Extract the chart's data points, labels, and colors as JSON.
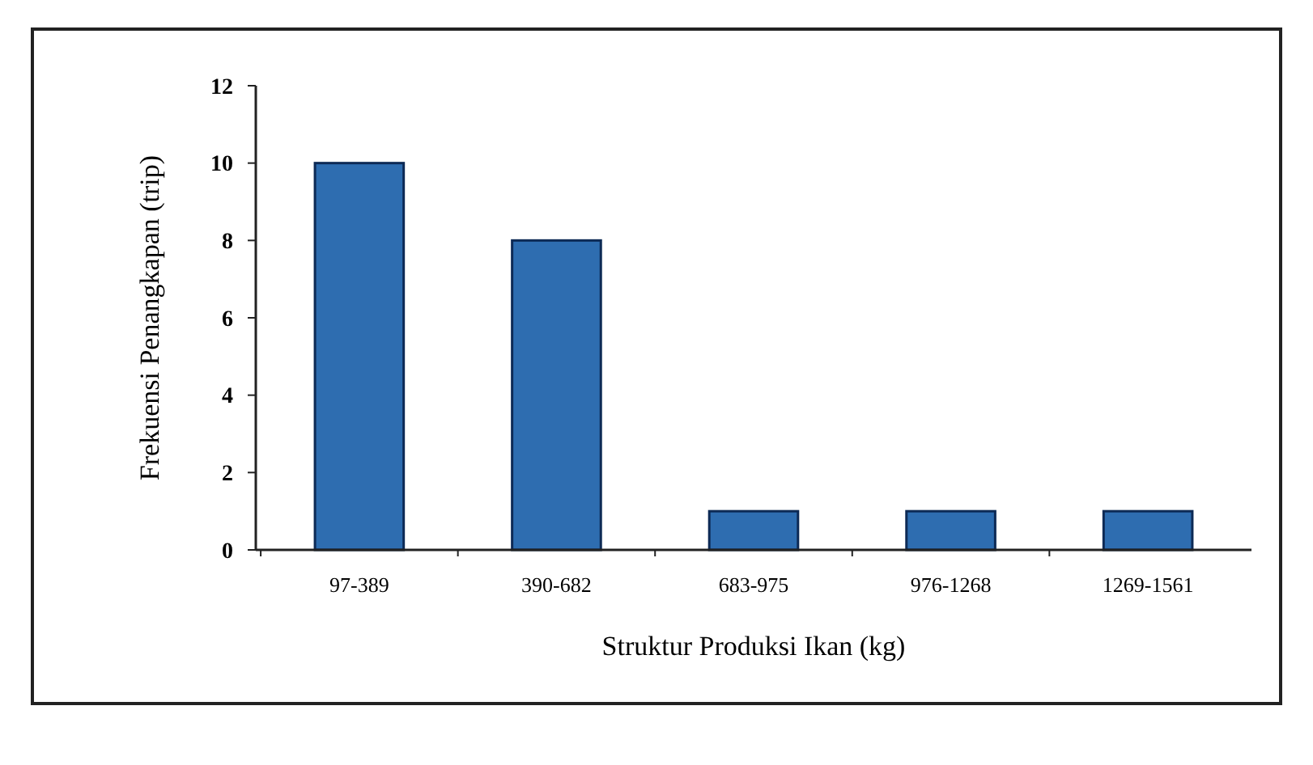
{
  "chart_data": {
    "type": "bar",
    "xlabel": "Struktur Produksi Ikan (kg)",
    "ylabel": "Frekuensi Penangkapan (trip)",
    "categories": [
      "97-389",
      "390-682",
      "683-975",
      "976-1268",
      "1269-1561"
    ],
    "values": [
      10,
      8,
      1,
      1,
      1
    ],
    "color": "#2e6db0",
    "ylim": [
      0,
      12
    ],
    "yticks": [
      0,
      2,
      4,
      6,
      8,
      10,
      12
    ],
    "grid": false
  }
}
